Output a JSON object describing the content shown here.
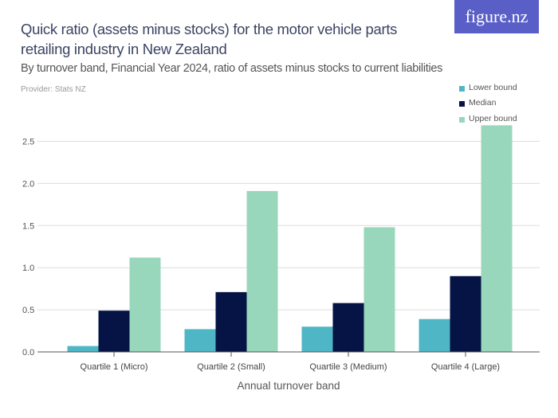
{
  "header": {
    "title": "Quick ratio (assets minus stocks) for the motor vehicle parts retailing industry in New Zealand",
    "subtitle": "By turnover band, Financial Year 2024, ratio of assets minus stocks to current liabilities",
    "provider": "Provider: Stats NZ",
    "logo": "figure.nz",
    "logo_color": "#5a5fc8"
  },
  "chart_data": {
    "type": "bar",
    "title": "Quick ratio (assets minus stocks) for the motor vehicle parts retailing industry in New Zealand",
    "subtitle": "By turnover band, Financial Year 2024, ratio of assets minus stocks to current liabilities",
    "xlabel": "Annual turnover band",
    "ylabel": "",
    "ylim": [
      0,
      2.7
    ],
    "yticks": [
      "0.0",
      "0.5",
      "1.0",
      "1.5",
      "2.0",
      "2.5"
    ],
    "grid": true,
    "legend_position": "top-right",
    "categories": [
      "Quartile 1 (Micro)",
      "Quartile 2 (Small)",
      "Quartile 3 (Medium)",
      "Quartile 4 (Large)"
    ],
    "series": [
      {
        "name": "Lower bound",
        "color": "#4fb6c5",
        "values": [
          0.07,
          0.27,
          0.3,
          0.39
        ]
      },
      {
        "name": "Median",
        "color": "#061445",
        "values": [
          0.49,
          0.71,
          0.58,
          0.9
        ]
      },
      {
        "name": "Upper bound",
        "color": "#98d7bb",
        "values": [
          1.12,
          1.91,
          1.48,
          2.69
        ]
      }
    ]
  }
}
